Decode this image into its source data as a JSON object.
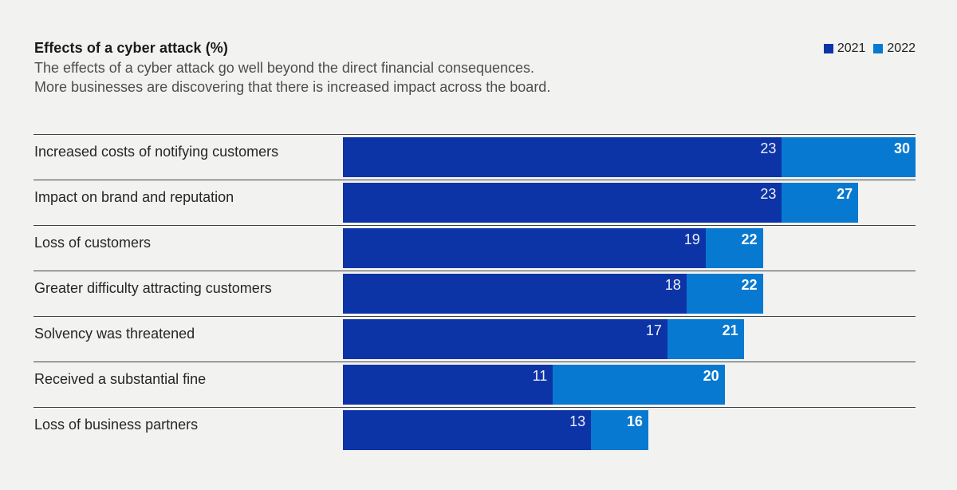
{
  "header": {
    "title": "Effects of a cyber attack (%)",
    "subtitle_line1": "The effects of a cyber attack go well beyond the direct financial consequences.",
    "subtitle_line2": "More businesses are discovering that there is increased impact across the board."
  },
  "legend": [
    {
      "label": "2021",
      "color": "#0d34a7"
    },
    {
      "label": "2022",
      "color": "#0879d1"
    }
  ],
  "colors": {
    "series_2021": "#0d34a7",
    "series_2022": "#0879d1",
    "background": "#f2f3f1",
    "divider": "#3f4245"
  },
  "chart_data": {
    "type": "bar",
    "orientation": "horizontal",
    "title": "Effects of a cyber attack (%)",
    "unit": "%",
    "legend_position": "top-right",
    "value_labels": "inside-end",
    "grid": "row-divider-lines",
    "xlim": [
      0,
      30
    ],
    "categories": [
      "Increased costs of notifying customers",
      "Impact on brand and reputation",
      "Loss of customers",
      "Greater difficulty attracting customers",
      "Solvency was threatened",
      "Received a substantial fine",
      "Loss of business partners"
    ],
    "series": [
      {
        "name": "2021",
        "values": [
          23,
          23,
          19,
          18,
          17,
          11,
          13
        ]
      },
      {
        "name": "2022",
        "values": [
          30,
          27,
          22,
          22,
          21,
          20,
          16
        ]
      }
    ]
  }
}
